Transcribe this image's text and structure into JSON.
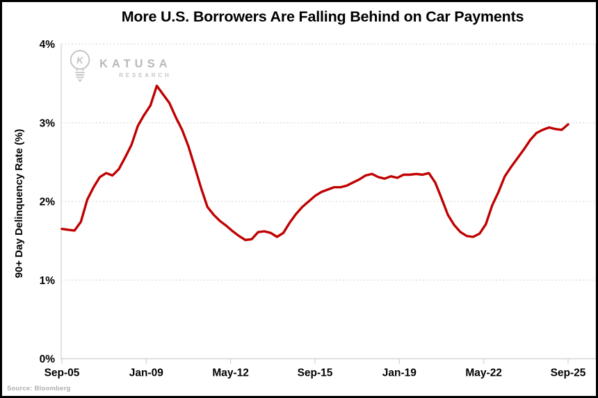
{
  "title": "More U.S. Borrowers Are Falling Behind on Car Payments",
  "source": "Source: Bloomberg",
  "logo": {
    "name": "KATUSA",
    "subtitle": "RESEARCH",
    "letter": "K"
  },
  "colors": {
    "line": "#C00000",
    "grid": "#D9D9D9",
    "axis": "#CFCFCF",
    "text": "#000000",
    "logo_gray": "#C3C3C3",
    "source_gray": "#AEAEAE"
  },
  "chart_data": {
    "type": "line",
    "title": "More U.S. Borrowers Are Falling Behind on Car Payments",
    "xlabel": "",
    "ylabel": "90+ Day Delinquency Rate (%)",
    "ylim": [
      0,
      4
    ],
    "ytick_labels": [
      "0%",
      "1%",
      "2%",
      "3%",
      "4%"
    ],
    "xtick_labels": [
      "Sep-05",
      "Jan-09",
      "May-12",
      "Sep-15",
      "Jan-19",
      "May-22",
      "Sep-25"
    ],
    "x_unit": "months since Sep-2005",
    "x_range_months": [
      0,
      240
    ],
    "x_step_months": 3,
    "grid": "horizontal dashed gridlines at each 1%",
    "legend": "none",
    "series": [
      {
        "name": "90+ day auto loan delinquency rate (%)",
        "color": "#C00000",
        "values": [
          1.65,
          1.64,
          1.63,
          1.74,
          2.02,
          2.18,
          2.31,
          2.36,
          2.33,
          2.41,
          2.56,
          2.72,
          2.96,
          3.1,
          3.22,
          3.47,
          3.36,
          3.25,
          3.07,
          2.91,
          2.7,
          2.44,
          2.17,
          1.93,
          1.83,
          1.75,
          1.69,
          1.62,
          1.56,
          1.51,
          1.52,
          1.61,
          1.62,
          1.6,
          1.55,
          1.6,
          1.73,
          1.84,
          1.93,
          2.0,
          2.07,
          2.12,
          2.15,
          2.18,
          2.18,
          2.2,
          2.24,
          2.28,
          2.33,
          2.35,
          2.31,
          2.29,
          2.32,
          2.3,
          2.34,
          2.34,
          2.35,
          2.34,
          2.36,
          2.24,
          2.04,
          1.83,
          1.7,
          1.61,
          1.56,
          1.55,
          1.59,
          1.71,
          1.95,
          2.12,
          2.32,
          2.44,
          2.55,
          2.66,
          2.78,
          2.87,
          2.91,
          2.94,
          2.92,
          2.91,
          2.98
        ]
      }
    ],
    "annotations": {
      "start_value_sep05": 1.65,
      "peak_2009_value": 3.47,
      "trough_2012_value": 1.51,
      "pre_pandemic_plateau": 2.35,
      "trough_2021_value": 1.55,
      "end_value_sep25": 2.98
    }
  }
}
